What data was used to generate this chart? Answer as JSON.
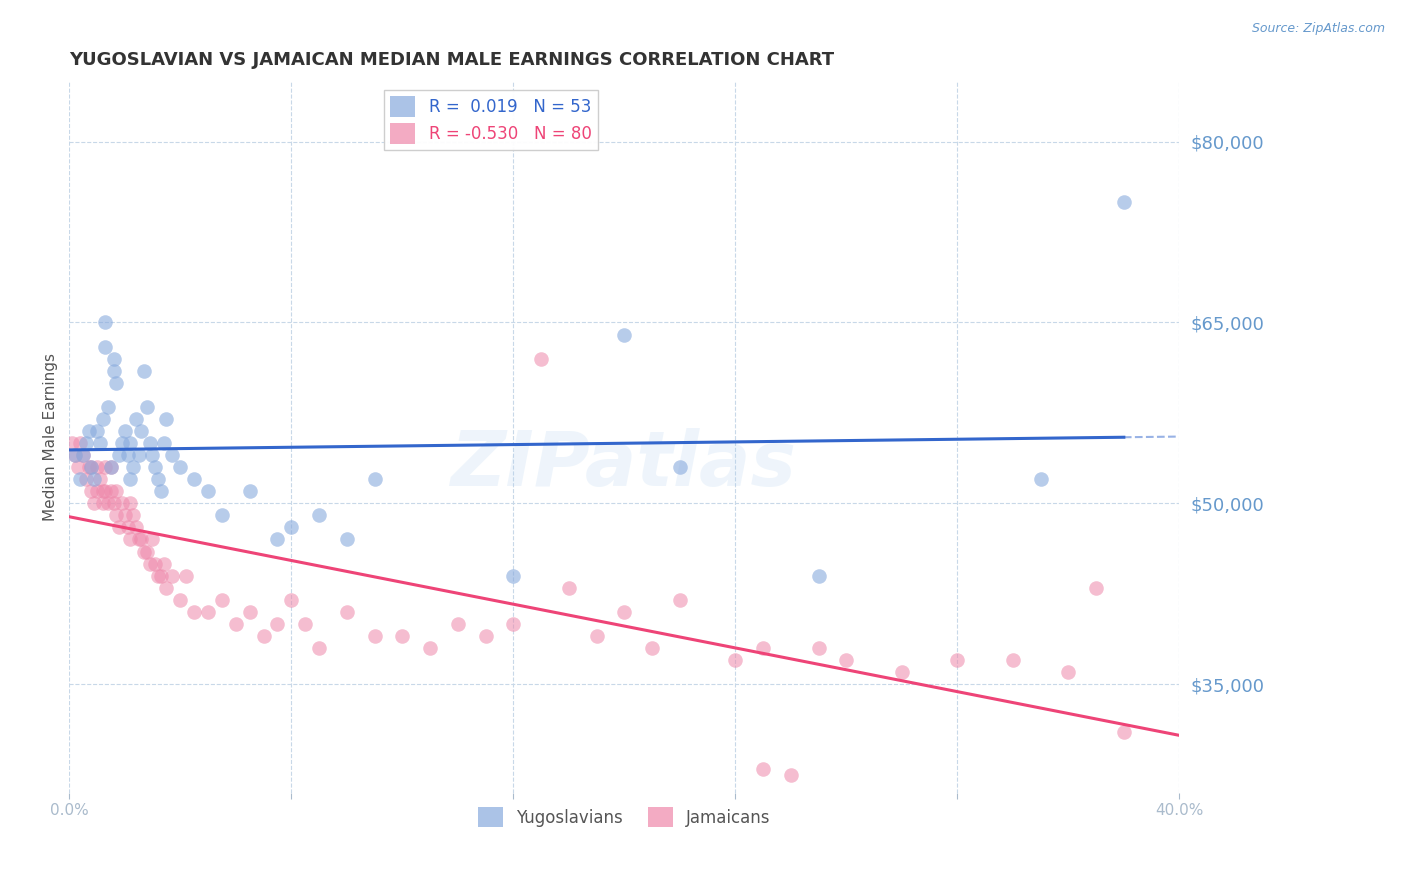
{
  "title": "YUGOSLAVIAN VS JAMAICAN MEDIAN MALE EARNINGS CORRELATION CHART",
  "source": "Source: ZipAtlas.com",
  "ylabel": "Median Male Earnings",
  "xlim": [
    0.0,
    0.4
  ],
  "ylim": [
    26000,
    85000
  ],
  "yticks": [
    35000,
    50000,
    65000,
    80000
  ],
  "ytick_labels": [
    "$35,000",
    "$50,000",
    "$65,000",
    "$80,000"
  ],
  "xticks": [
    0.0,
    0.08,
    0.16,
    0.24,
    0.32,
    0.4
  ],
  "xtick_labels": [
    "0.0%",
    "",
    "",
    "",
    "",
    "40.0%"
  ],
  "background_color": "#ffffff",
  "grid_color": "#c8d8e8",
  "axis_color": "#aabbcc",
  "title_color": "#333333",
  "label_color": "#555555",
  "yaxis_label_color": "#6699cc",
  "watermark": "ZIPatlas",
  "blue_R": 0.019,
  "blue_N": 53,
  "pink_R": -0.53,
  "pink_N": 80,
  "blue_color": "#88aadd",
  "pink_color": "#ee88aa",
  "blue_line_color": "#3366cc",
  "pink_line_color": "#ee4477",
  "blue_scatter_x": [
    0.002,
    0.004,
    0.005,
    0.006,
    0.007,
    0.008,
    0.009,
    0.01,
    0.011,
    0.012,
    0.013,
    0.013,
    0.014,
    0.015,
    0.016,
    0.016,
    0.017,
    0.018,
    0.019,
    0.02,
    0.021,
    0.022,
    0.022,
    0.023,
    0.024,
    0.025,
    0.026,
    0.027,
    0.028,
    0.029,
    0.03,
    0.031,
    0.032,
    0.033,
    0.034,
    0.035,
    0.037,
    0.04,
    0.045,
    0.05,
    0.055,
    0.065,
    0.075,
    0.08,
    0.09,
    0.1,
    0.11,
    0.16,
    0.2,
    0.22,
    0.27,
    0.35,
    0.38
  ],
  "blue_scatter_y": [
    54000,
    52000,
    54000,
    55000,
    56000,
    53000,
    52000,
    56000,
    55000,
    57000,
    63000,
    65000,
    58000,
    53000,
    61000,
    62000,
    60000,
    54000,
    55000,
    56000,
    54000,
    55000,
    52000,
    53000,
    57000,
    54000,
    56000,
    61000,
    58000,
    55000,
    54000,
    53000,
    52000,
    51000,
    55000,
    57000,
    54000,
    53000,
    52000,
    51000,
    49000,
    51000,
    47000,
    48000,
    49000,
    47000,
    52000,
    44000,
    64000,
    53000,
    44000,
    52000,
    75000
  ],
  "pink_scatter_x": [
    0.001,
    0.002,
    0.003,
    0.004,
    0.005,
    0.006,
    0.007,
    0.008,
    0.008,
    0.009,
    0.01,
    0.01,
    0.011,
    0.012,
    0.012,
    0.013,
    0.013,
    0.014,
    0.015,
    0.015,
    0.016,
    0.017,
    0.017,
    0.018,
    0.019,
    0.02,
    0.021,
    0.022,
    0.022,
    0.023,
    0.024,
    0.025,
    0.026,
    0.027,
    0.028,
    0.029,
    0.03,
    0.031,
    0.032,
    0.033,
    0.034,
    0.035,
    0.037,
    0.04,
    0.042,
    0.045,
    0.05,
    0.055,
    0.06,
    0.065,
    0.07,
    0.075,
    0.08,
    0.085,
    0.09,
    0.1,
    0.11,
    0.12,
    0.13,
    0.14,
    0.15,
    0.16,
    0.17,
    0.18,
    0.19,
    0.2,
    0.21,
    0.22,
    0.24,
    0.25,
    0.27,
    0.28,
    0.3,
    0.32,
    0.34,
    0.36,
    0.37,
    0.38,
    0.25,
    0.26
  ],
  "pink_scatter_y": [
    55000,
    54000,
    53000,
    55000,
    54000,
    52000,
    53000,
    51000,
    53000,
    50000,
    51000,
    53000,
    52000,
    50000,
    51000,
    53000,
    51000,
    50000,
    51000,
    53000,
    50000,
    49000,
    51000,
    48000,
    50000,
    49000,
    48000,
    47000,
    50000,
    49000,
    48000,
    47000,
    47000,
    46000,
    46000,
    45000,
    47000,
    45000,
    44000,
    44000,
    45000,
    43000,
    44000,
    42000,
    44000,
    41000,
    41000,
    42000,
    40000,
    41000,
    39000,
    40000,
    42000,
    40000,
    38000,
    41000,
    39000,
    39000,
    38000,
    40000,
    39000,
    40000,
    62000,
    43000,
    39000,
    41000,
    38000,
    42000,
    37000,
    38000,
    38000,
    37000,
    36000,
    37000,
    37000,
    36000,
    43000,
    31000,
    28000,
    27500
  ]
}
